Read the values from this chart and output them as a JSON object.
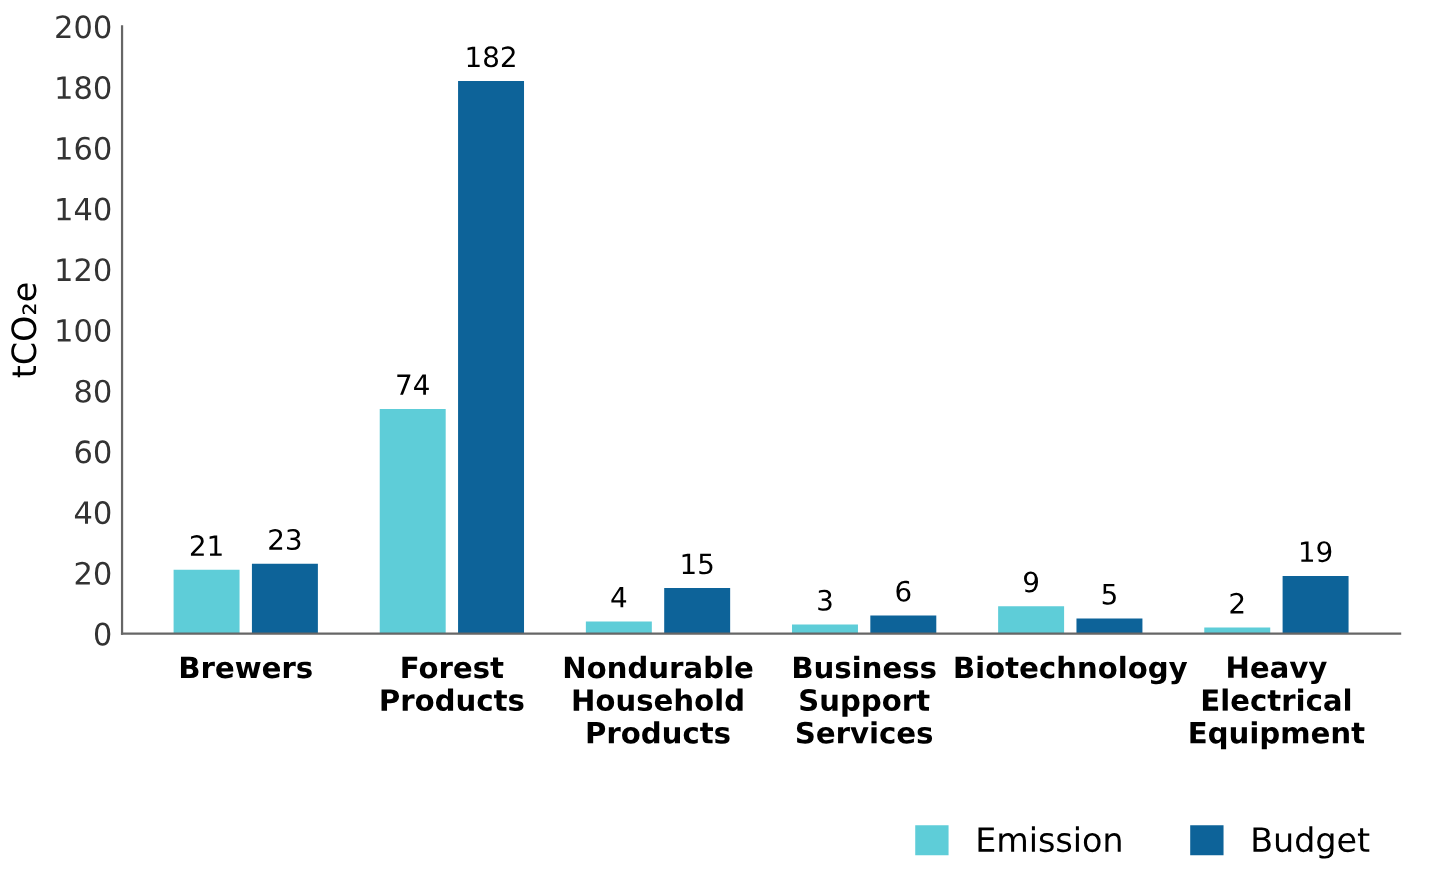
{
  "chart_data": {
    "type": "bar",
    "ylabel": "tCO₂e",
    "categories": [
      "Brewers",
      "Forest\nProducts",
      "Nondurable\nHousehold\nProducts",
      "Business\nSupport\nServices",
      "Biotechnology",
      "Heavy\nElectrical\nEquipment"
    ],
    "series": [
      {
        "name": "Emission",
        "color": "#5ecdd8",
        "values": [
          21,
          74,
          4,
          3,
          9,
          2
        ]
      },
      {
        "name": "Budget",
        "color": "#0d6399",
        "values": [
          23,
          182,
          15,
          6,
          5,
          19
        ]
      }
    ],
    "ylim": [
      0,
      200
    ],
    "yticks": [
      0,
      20,
      40,
      60,
      80,
      100,
      120,
      140,
      160,
      180,
      200
    ],
    "data_labels": true,
    "legend": "bottom right",
    "grid": false
  }
}
